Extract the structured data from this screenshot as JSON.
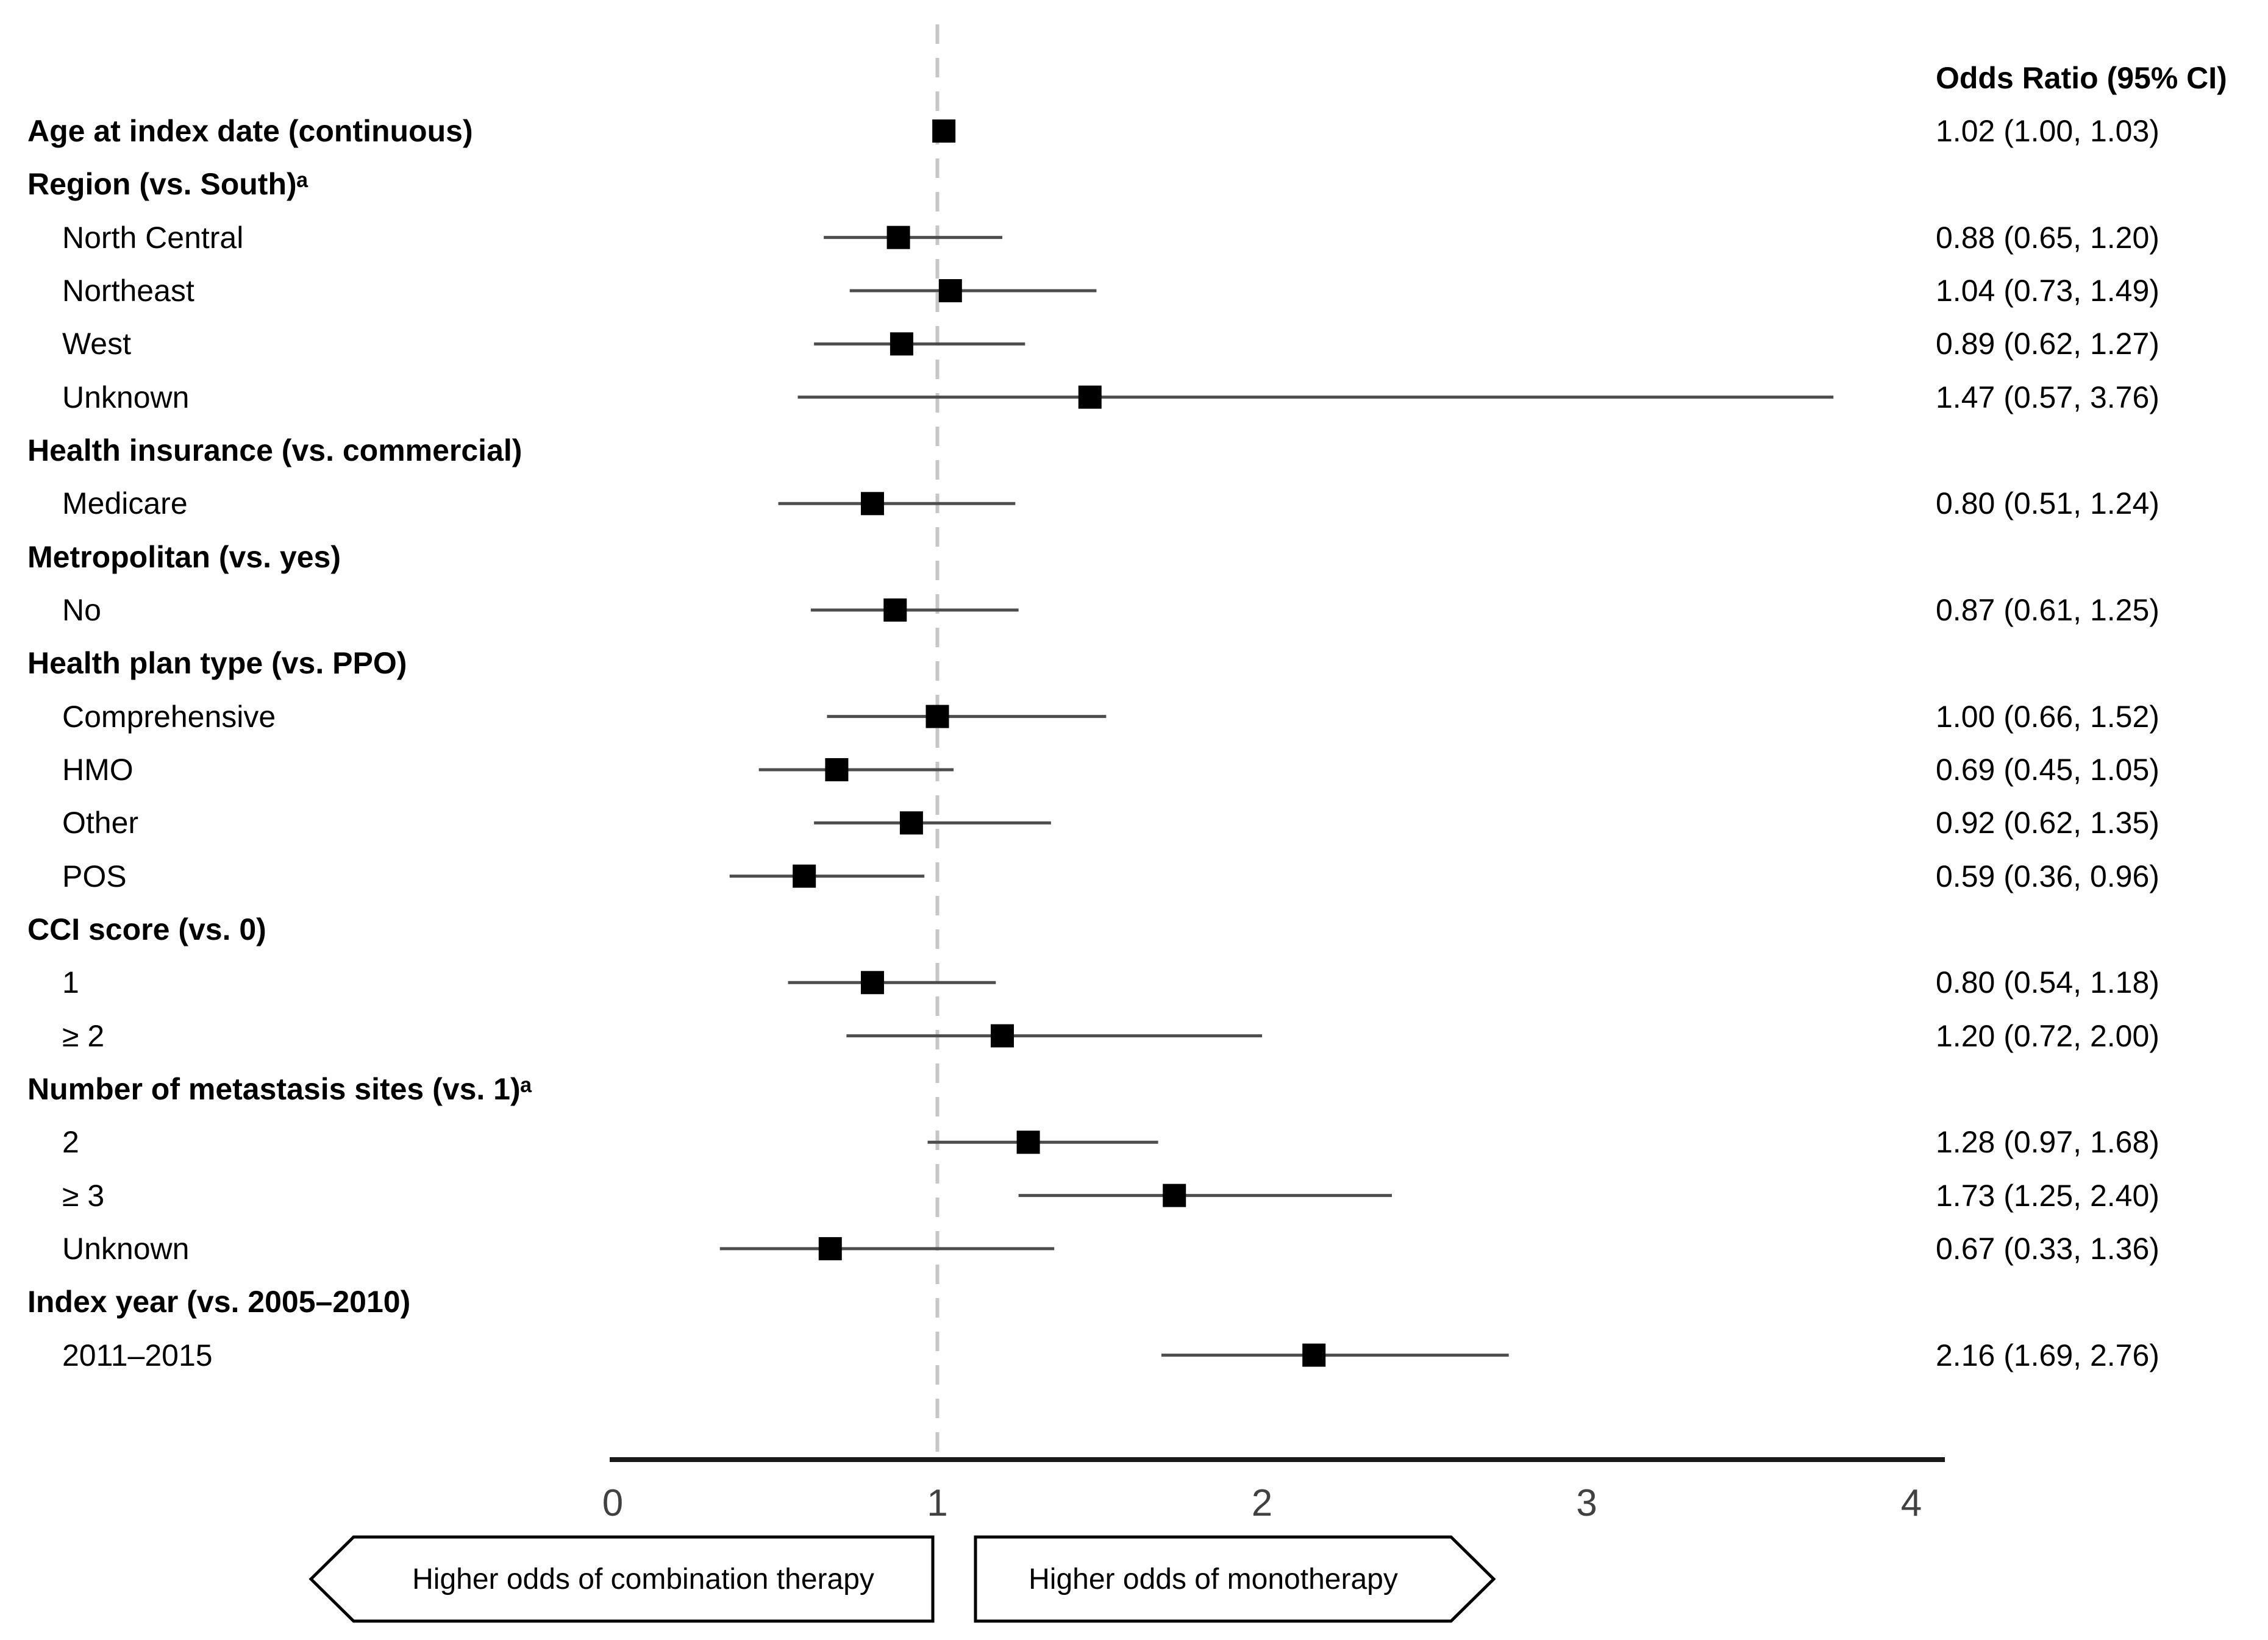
{
  "page": {
    "background": "#ffffff"
  },
  "chart_data": {
    "type": "scatter",
    "subtype": "forest-plot",
    "title": "",
    "or_column_header": "Odds Ratio (95% CI)",
    "x_axis": {
      "range": [
        0,
        4
      ],
      "ticks": [
        0,
        1,
        2,
        3,
        4
      ],
      "reference_line": 1,
      "grid": false
    },
    "colors": {
      "marker": "#000000",
      "ci_line": "#4d4d4d",
      "reference_line": "#c6c6c6",
      "axis": "#1a1a1a",
      "tick_label": "#414141"
    },
    "rows": [
      {
        "label": "Age at index date (continuous)",
        "level": "group",
        "or": 1.02,
        "ci_low": 1.0,
        "ci_high": 1.03,
        "display": "1.02 (1.00, 1.03)"
      },
      {
        "label": "Region (vs. South)ᵃ",
        "level": "group"
      },
      {
        "label": "North Central",
        "level": "item",
        "or": 0.88,
        "ci_low": 0.65,
        "ci_high": 1.2,
        "display": "0.88 (0.65, 1.20)"
      },
      {
        "label": "Northeast",
        "level": "item",
        "or": 1.04,
        "ci_low": 0.73,
        "ci_high": 1.49,
        "display": "1.04 (0.73, 1.49)"
      },
      {
        "label": "West",
        "level": "item",
        "or": 0.89,
        "ci_low": 0.62,
        "ci_high": 1.27,
        "display": "0.89 (0.62, 1.27)"
      },
      {
        "label": "Unknown",
        "level": "item",
        "or": 1.47,
        "ci_low": 0.57,
        "ci_high": 3.76,
        "display": "1.47 (0.57, 3.76)"
      },
      {
        "label": "Health insurance (vs. commercial)",
        "level": "group"
      },
      {
        "label": "Medicare",
        "level": "item",
        "or": 0.8,
        "ci_low": 0.51,
        "ci_high": 1.24,
        "display": "0.80 (0.51, 1.24)"
      },
      {
        "label": "Metropolitan (vs. yes)",
        "level": "group"
      },
      {
        "label": "No",
        "level": "item",
        "or": 0.87,
        "ci_low": 0.61,
        "ci_high": 1.25,
        "display": "0.87 (0.61, 1.25)"
      },
      {
        "label": "Health plan type (vs. PPO)",
        "level": "group"
      },
      {
        "label": "Comprehensive",
        "level": "item",
        "or": 1.0,
        "ci_low": 0.66,
        "ci_high": 1.52,
        "display": "1.00 (0.66, 1.52)"
      },
      {
        "label": "HMO",
        "level": "item",
        "or": 0.69,
        "ci_low": 0.45,
        "ci_high": 1.05,
        "display": "0.69 (0.45, 1.05)"
      },
      {
        "label": "Other",
        "level": "item",
        "or": 0.92,
        "ci_low": 0.62,
        "ci_high": 1.35,
        "display": "0.92 (0.62, 1.35)"
      },
      {
        "label": "POS",
        "level": "item",
        "or": 0.59,
        "ci_low": 0.36,
        "ci_high": 0.96,
        "display": "0.59 (0.36, 0.96)"
      },
      {
        "label": "CCI score (vs. 0)",
        "level": "group"
      },
      {
        "label": "1",
        "level": "item",
        "or": 0.8,
        "ci_low": 0.54,
        "ci_high": 1.18,
        "display": "0.80 (0.54, 1.18)"
      },
      {
        "label": "≥ 2",
        "level": "item",
        "or": 1.2,
        "ci_low": 0.72,
        "ci_high": 2.0,
        "display": "1.20 (0.72, 2.00)"
      },
      {
        "label": "Number of metastasis sites (vs. 1)ᵃ",
        "level": "group"
      },
      {
        "label": "2",
        "level": "item",
        "or": 1.28,
        "ci_low": 0.97,
        "ci_high": 1.68,
        "display": "1.28 (0.97, 1.68)"
      },
      {
        "label": "≥ 3",
        "level": "item",
        "or": 1.73,
        "ci_low": 1.25,
        "ci_high": 2.4,
        "display": "1.73 (1.25, 2.40)"
      },
      {
        "label": "Unknown",
        "level": "item",
        "or": 0.67,
        "ci_low": 0.33,
        "ci_high": 1.36,
        "display": "0.67 (0.33, 1.36)"
      },
      {
        "label": "Index year (vs. 2005–2010)",
        "level": "group"
      },
      {
        "label": "2011–2015",
        "level": "item",
        "or": 2.16,
        "ci_low": 1.69,
        "ci_high": 2.76,
        "display": "2.16 (1.69, 2.76)"
      }
    ],
    "footer_arrows": {
      "left": "Higher odds of combination therapy",
      "right": "Higher odds of monotherapy"
    }
  }
}
